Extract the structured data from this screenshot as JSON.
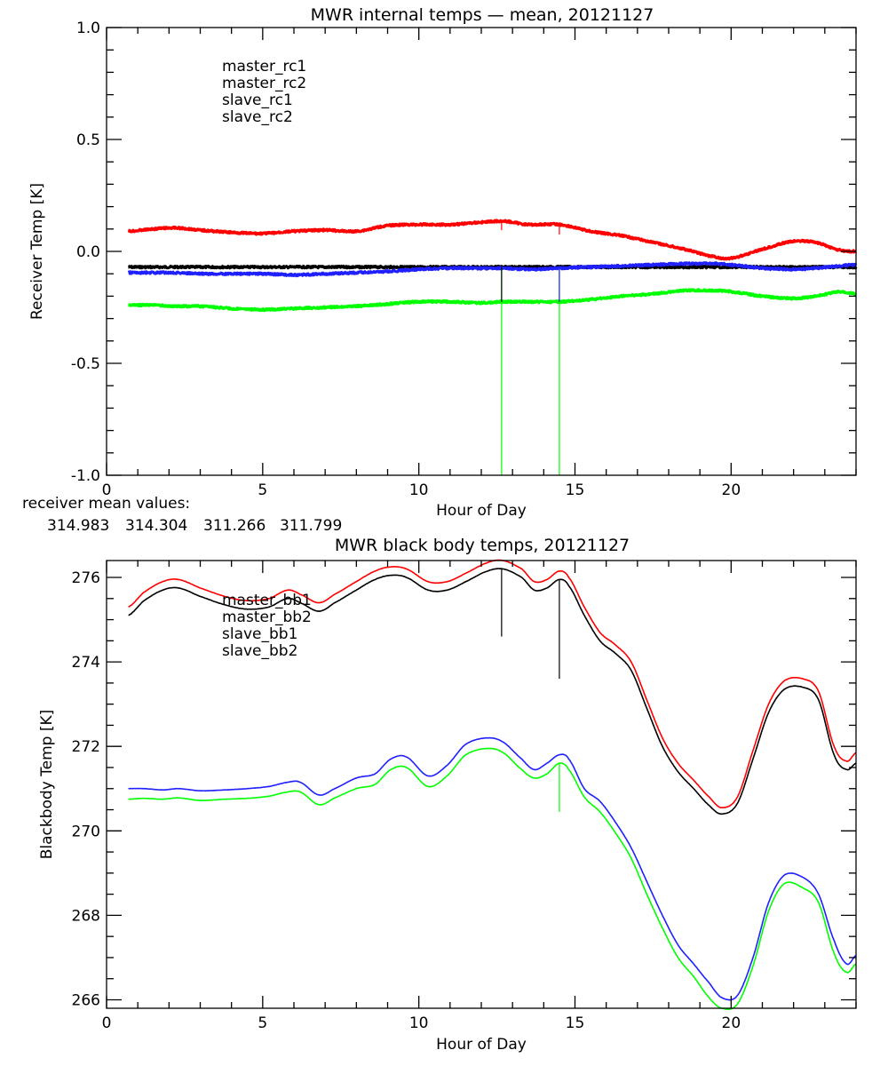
{
  "chart_data": [
    {
      "type": "line",
      "title": "MWR internal temps — mean, 20121127",
      "xlabel": "Hour of Day",
      "ylabel": "Receiver Temp [K]",
      "xlim": [
        0,
        24
      ],
      "ylim": [
        -1.0,
        1.0
      ],
      "xticks": [
        "0",
        "5",
        "10",
        "15",
        "20"
      ],
      "yticks": [
        "-1.0",
        "-0.5",
        "0.0",
        "0.5",
        "1.0"
      ],
      "legend_placement": "top-left",
      "x": [
        0.7,
        1.5,
        2.2,
        3.0,
        4.0,
        5.0,
        6.0,
        7.0,
        8.0,
        9.0,
        10.0,
        11.0,
        12.0,
        12.7,
        13.5,
        14.5,
        15.5,
        16.5,
        17.5,
        18.5,
        19.5,
        20.0,
        21.0,
        22.0,
        22.7,
        23.5,
        24.0
      ],
      "series": [
        {
          "name": "master_rc1",
          "color": "#000000",
          "values": [
            -0.07,
            -0.07,
            -0.07,
            -0.07,
            -0.07,
            -0.07,
            -0.07,
            -0.07,
            -0.07,
            -0.07,
            -0.07,
            -0.07,
            -0.07,
            -0.07,
            -0.07,
            -0.07,
            -0.07,
            -0.07,
            -0.07,
            -0.07,
            -0.07,
            -0.07,
            -0.07,
            -0.07,
            -0.07,
            -0.07,
            -0.07
          ]
        },
        {
          "name": "master_rc2",
          "color": "#ff0000",
          "values": [
            0.09,
            0.1,
            0.105,
            0.095,
            0.085,
            0.08,
            0.09,
            0.095,
            0.09,
            0.115,
            0.12,
            0.12,
            0.13,
            0.135,
            0.12,
            0.12,
            0.09,
            0.07,
            0.04,
            0.01,
            -0.025,
            -0.03,
            0.01,
            0.045,
            0.04,
            0.005,
            0.0
          ]
        },
        {
          "name": "slave_rc1",
          "color": "#2020ff",
          "values": [
            -0.095,
            -0.095,
            -0.095,
            -0.1,
            -0.1,
            -0.1,
            -0.105,
            -0.1,
            -0.095,
            -0.09,
            -0.08,
            -0.075,
            -0.075,
            -0.075,
            -0.08,
            -0.075,
            -0.07,
            -0.065,
            -0.06,
            -0.055,
            -0.055,
            -0.06,
            -0.075,
            -0.08,
            -0.075,
            -0.065,
            -0.06
          ]
        },
        {
          "name": "slave_rc2",
          "color": "#00ff00",
          "values": [
            -0.24,
            -0.24,
            -0.245,
            -0.245,
            -0.255,
            -0.26,
            -0.255,
            -0.25,
            -0.245,
            -0.235,
            -0.225,
            -0.225,
            -0.23,
            -0.225,
            -0.225,
            -0.225,
            -0.215,
            -0.2,
            -0.19,
            -0.175,
            -0.175,
            -0.18,
            -0.2,
            -0.21,
            -0.2,
            -0.18,
            -0.19
          ]
        }
      ],
      "spikes": [
        {
          "x": 12.65,
          "from": -0.075,
          "to": -1.0,
          "color": "#00ff00"
        },
        {
          "x": 14.5,
          "from": -0.075,
          "to": -1.0,
          "color": "#00ff00"
        },
        {
          "x": 12.65,
          "from": -0.07,
          "to": -0.225,
          "color": "#000000"
        },
        {
          "x": 14.5,
          "from": -0.075,
          "to": -0.225,
          "color": "#2020ff"
        },
        {
          "x": 12.65,
          "from": 0.135,
          "to": 0.095,
          "color": "#ff0000"
        },
        {
          "x": 14.5,
          "from": 0.12,
          "to": 0.075,
          "color": "#ff0000"
        }
      ]
    },
    {
      "type": "line",
      "title": "MWR black body temps, 20121127",
      "xlabel": "Hour of Day",
      "ylabel": "Blackbody Temp [K]",
      "xlim": [
        0,
        24
      ],
      "ylim": [
        265.8,
        276.4
      ],
      "xticks": [
        "0",
        "5",
        "10",
        "15",
        "20"
      ],
      "yticks": [
        "266",
        "268",
        "270",
        "272",
        "274",
        "276"
      ],
      "legend_placement": "top-left",
      "x": [
        0.7,
        1.2,
        1.8,
        2.3,
        3.0,
        3.8,
        4.5,
        5.2,
        5.8,
        6.2,
        6.8,
        7.3,
        8.0,
        8.6,
        9.1,
        9.6,
        10.3,
        10.9,
        11.5,
        12.2,
        12.7,
        13.3,
        13.7,
        14.1,
        14.5,
        14.8,
        15.3,
        15.8,
        16.3,
        16.8,
        17.3,
        17.8,
        18.3,
        18.8,
        19.3,
        19.7,
        20.2,
        20.7,
        21.2,
        21.7,
        22.3,
        22.8,
        23.3,
        23.7,
        24.0
      ],
      "series": [
        {
          "name": "master_bb1",
          "color": "#000000",
          "values": [
            275.1,
            275.45,
            275.7,
            275.75,
            275.55,
            275.35,
            275.25,
            275.3,
            275.5,
            275.4,
            275.2,
            275.4,
            275.7,
            275.95,
            276.05,
            276.0,
            275.7,
            275.7,
            275.9,
            276.15,
            276.2,
            276.0,
            275.7,
            275.75,
            275.95,
            275.8,
            275.1,
            274.5,
            274.2,
            273.8,
            272.9,
            272.0,
            271.4,
            271.0,
            270.6,
            270.4,
            270.65,
            271.7,
            272.8,
            273.35,
            273.4,
            273.1,
            271.8,
            271.45,
            271.6
          ]
        },
        {
          "name": "master_bb2",
          "color": "#ff0000",
          "values": [
            275.3,
            275.65,
            275.9,
            275.95,
            275.75,
            275.55,
            275.45,
            275.5,
            275.7,
            275.6,
            275.4,
            275.6,
            275.9,
            276.15,
            276.25,
            276.2,
            275.9,
            275.9,
            276.1,
            276.35,
            276.4,
            276.2,
            275.9,
            275.95,
            276.15,
            276.0,
            275.3,
            274.7,
            274.4,
            274.0,
            273.1,
            272.2,
            271.6,
            271.2,
            270.8,
            270.55,
            270.8,
            271.9,
            273.0,
            273.55,
            273.6,
            273.3,
            272.0,
            271.65,
            271.85
          ]
        },
        {
          "name": "slave_bb1",
          "color": "#2020ff",
          "values": [
            271.0,
            271.0,
            270.97,
            271.0,
            270.95,
            270.97,
            271.0,
            271.05,
            271.15,
            271.15,
            270.85,
            271.0,
            271.25,
            271.35,
            271.7,
            271.75,
            271.3,
            271.55,
            272.05,
            272.2,
            272.1,
            271.7,
            271.45,
            271.6,
            271.8,
            271.7,
            271.0,
            270.7,
            270.2,
            269.6,
            268.8,
            268.0,
            267.3,
            266.85,
            266.4,
            266.05,
            266.1,
            267.0,
            268.3,
            268.95,
            268.9,
            268.5,
            267.4,
            266.85,
            267.05
          ]
        },
        {
          "name": "slave_bb2",
          "color": "#00ff00",
          "values": [
            270.75,
            270.77,
            270.75,
            270.78,
            270.72,
            270.75,
            270.77,
            270.82,
            270.92,
            270.92,
            270.62,
            270.78,
            271.0,
            271.1,
            271.45,
            271.5,
            271.05,
            271.3,
            271.8,
            271.95,
            271.85,
            271.45,
            271.25,
            271.35,
            271.6,
            271.45,
            270.8,
            270.45,
            269.95,
            269.35,
            268.5,
            267.7,
            267.0,
            266.55,
            266.05,
            265.8,
            265.9,
            266.8,
            268.1,
            268.75,
            268.65,
            268.3,
            267.1,
            266.65,
            266.85
          ]
        }
      ],
      "spikes": [
        {
          "x": 12.65,
          "from": 276.2,
          "to": 274.6,
          "color": "#000000"
        },
        {
          "x": 14.5,
          "from": 275.95,
          "to": 273.6,
          "color": "#000000"
        },
        {
          "x": 14.5,
          "from": 271.6,
          "to": 270.45,
          "color": "#00ff00"
        }
      ]
    }
  ],
  "annotation": {
    "label": "receiver mean values:",
    "values": [
      {
        "text": "314.983",
        "color": "#000000"
      },
      {
        "text": "314.304",
        "color": "#ff0000"
      },
      {
        "text": "311.266",
        "color": "#2020ff"
      },
      {
        "text": "311.799",
        "color": "#00ff00"
      }
    ]
  }
}
